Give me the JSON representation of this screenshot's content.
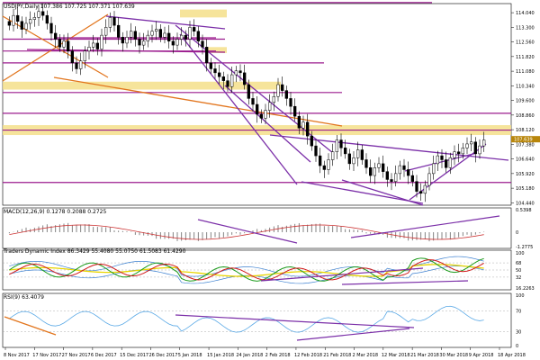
{
  "main_header": "USDJPY,Daily  107.386 107.725 107.371 107.639",
  "macd_header": "MACD(12,26,9) 0.1278 0.2088 0.2725",
  "tdi_header": "Traders Dynamic Index 86.3429 55.4080 55.0750 61.5083 61.4290",
  "rsi_header": "RSI(9) 63.4079",
  "colors": {
    "bull": "#ffffff",
    "bear": "#000000",
    "channel": "#7b2fa8",
    "level": "#9b1b8e",
    "zone": "#f5df8a",
    "fan": "#e2751d",
    "current_price_tag": "#b8860b",
    "tdi_price": "#1a9a1a",
    "tdi_signal": "#d11a1a",
    "tdi_market_base": "#e8d500",
    "tdi_band": "#3a7fd0",
    "macd_hist": "#777777",
    "macd_signal": "#c33",
    "rsi_line": "#5aa9e6"
  },
  "chart_data": {
    "type": "candlestick",
    "symbol": "USDJPY",
    "timeframe": "Daily",
    "ohlc_last": {
      "open": 107.386,
      "high": 107.725,
      "low": 107.371,
      "close": 107.639
    },
    "price_axis_ticks": [
      "114.040",
      "113.300",
      "112.560",
      "111.820",
      "111.080",
      "110.340",
      "109.600",
      "108.860",
      "108.120",
      "107.380",
      "106.640",
      "105.920",
      "105.180",
      "104.440"
    ],
    "current_price_label": "107.639",
    "y_range": [
      104.3,
      114.5
    ],
    "date_ticks": [
      "8 Nov 2017",
      "17 Nov 2017",
      "27 Nov 2017",
      "6 Dec 2017",
      "15 Dec 2017",
      "26 Dec 2017",
      "5 Jan 2018",
      "15 Jan 2018",
      "24 Jan 2018",
      "2 Feb 2018",
      "12 Feb 2018",
      "21 Feb 2018",
      "2 Mar 2018",
      "12 Mar 2018",
      "21 Mar 2018",
      "30 Mar 2018",
      "9 Apr 2018",
      "18 Apr 2018"
    ],
    "closes": [
      113.4,
      113.9,
      113.6,
      113.2,
      113.5,
      113.7,
      113.8,
      114.1,
      113.9,
      113.5,
      113.0,
      112.7,
      112.3,
      112.6,
      112.1,
      111.5,
      111.2,
      111.6,
      112.1,
      112.3,
      112.5,
      112.2,
      112.9,
      113.3,
      113.8,
      113.4,
      112.8,
      112.5,
      112.8,
      113.1,
      112.7,
      112.4,
      112.6,
      112.9,
      113.1,
      113.2,
      112.8,
      113.0,
      112.6,
      112.4,
      112.7,
      112.9,
      112.7,
      113.3,
      113.1,
      112.6,
      112.3,
      111.5,
      111.2,
      111.0,
      110.8,
      110.6,
      110.3,
      110.9,
      111.1,
      111.0,
      110.4,
      109.7,
      109.4,
      108.9,
      108.7,
      109.1,
      109.5,
      109.8,
      110.4,
      110.1,
      109.7,
      109.3,
      108.8,
      108.2,
      108.5,
      107.8,
      107.3,
      106.8,
      106.3,
      106.1,
      106.6,
      107.0,
      107.6,
      107.2,
      106.9,
      106.4,
      106.7,
      107.1,
      106.6,
      106.2,
      105.8,
      106.2,
      106.4,
      106.0,
      105.6,
      105.5,
      105.9,
      106.3,
      106.1,
      105.8,
      105.5,
      105.0,
      104.9,
      105.3,
      105.9,
      106.4,
      106.8,
      106.6,
      106.2,
      106.7,
      107.0,
      106.9,
      107.2,
      107.4,
      107.5,
      106.9,
      107.3,
      107.6
    ],
    "levels": [
      114.55,
      112.7,
      112.1,
      111.5,
      110.0,
      108.95,
      108.1,
      105.45
    ],
    "zones": [
      [
        113.8,
        114.2
      ],
      [
        112.0,
        112.3
      ],
      [
        110.15,
        110.55
      ],
      [
        107.85,
        108.35
      ]
    ],
    "macd_ticks": [
      "0.5398",
      "0",
      "-1.2775"
    ],
    "tdi_ticks": [
      "100",
      "68",
      "50",
      "32",
      "16.2263"
    ],
    "rsi_ticks": [
      "100",
      "70",
      "30",
      "0"
    ]
  }
}
